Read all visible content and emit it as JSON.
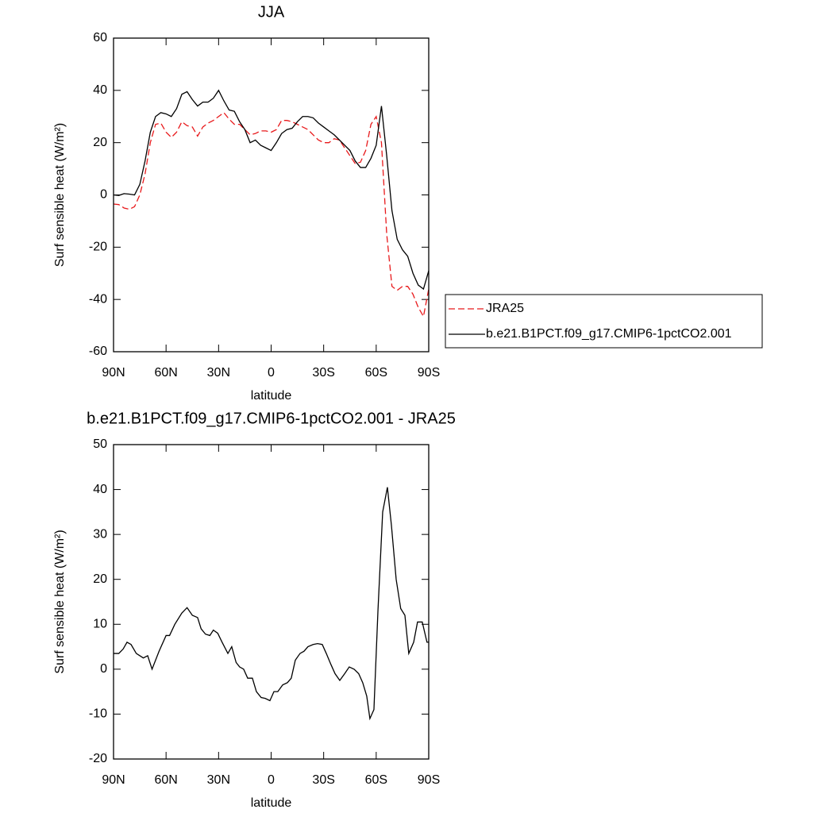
{
  "chart_data": [
    {
      "type": "line",
      "title": "JJA",
      "xlabel": "latitude",
      "ylabel": "Surf sensible heat (W/m²)",
      "x": [
        90,
        87,
        84,
        81,
        78,
        75,
        72,
        69,
        66,
        63,
        60,
        57,
        54,
        51,
        48,
        45,
        42,
        39,
        36,
        33,
        30,
        27,
        24,
        21,
        18,
        15,
        12,
        9,
        6,
        3,
        0,
        -3,
        -6,
        -9,
        -12,
        -15,
        -18,
        -21,
        -24,
        -27,
        -30,
        -33,
        -36,
        -39,
        -42,
        -45,
        -48,
        -51,
        -54,
        -57,
        -60,
        -63,
        -66,
        -69,
        -72,
        -75,
        -78,
        -81,
        -84,
        -87,
        -90
      ],
      "series": [
        {
          "name": "JRA25",
          "color": "#e8191b",
          "line_style": "dashed",
          "values": [
            -3.5,
            -3.7,
            -5,
            -5.5,
            -4.5,
            0,
            8,
            20,
            27,
            27.5,
            24,
            22,
            24,
            28,
            26.5,
            26,
            22.5,
            26,
            27.5,
            28.5,
            30,
            31.5,
            29,
            27,
            27,
            25,
            23,
            23.5,
            24.5,
            24.5,
            24,
            25,
            28.5,
            28.5,
            28,
            27,
            26,
            25,
            23,
            21,
            20,
            20,
            21.5,
            21,
            18,
            15,
            12,
            12.5,
            17,
            27,
            30,
            20,
            -15,
            -35,
            -36.5,
            -35,
            -35,
            -38,
            -43,
            -46.5,
            -36
          ]
        },
        {
          "name": "b.e21.B1PCT.f09_g17.CMIP6-1pctCO2.001",
          "color": "#000000",
          "line_style": "solid",
          "values": [
            0,
            -0.2,
            0.5,
            0.3,
            0,
            4,
            13,
            24,
            30,
            31.5,
            31,
            30,
            33,
            38.5,
            39.5,
            36.5,
            34,
            35.5,
            35.5,
            37,
            40,
            36,
            32.5,
            32,
            28,
            25,
            20,
            21,
            19,
            18,
            17,
            20,
            23.5,
            25,
            25.5,
            28,
            30,
            30,
            29.5,
            27.5,
            26,
            24.5,
            23,
            21,
            19,
            17,
            13,
            10.5,
            10.5,
            14,
            19,
            34,
            15,
            -6,
            -17,
            -21,
            -23.5,
            -30,
            -34.5,
            -36,
            -29
          ]
        }
      ],
      "xlim": [
        90,
        -90
      ],
      "xticks": [
        {
          "value": 90,
          "label": "90N"
        },
        {
          "value": 60,
          "label": "60N"
        },
        {
          "value": 30,
          "label": "30N"
        },
        0,
        {
          "value": -30,
          "label": "30S"
        },
        {
          "value": -60,
          "label": "60S"
        },
        {
          "value": -90,
          "label": "90S"
        }
      ],
      "ylim": [
        -60,
        60
      ],
      "yticks": [
        -60,
        -40,
        -20,
        0,
        20,
        40,
        60
      ],
      "legend": "right"
    },
    {
      "type": "line",
      "title": "b.e21.B1PCT.f09_g17.CMIP6-1pctCO2.001 - JRA25",
      "xlabel": "latitude",
      "ylabel": "Surf sensible heat (W/m²)",
      "x": [
        90,
        87,
        84.5,
        82.3,
        80,
        77,
        73,
        70.5,
        68,
        64,
        60,
        58,
        55,
        51,
        48,
        45,
        42,
        40,
        37.5,
        35,
        33,
        30.5,
        28,
        24.7,
        22.5,
        20,
        18,
        15.7,
        13.4,
        10.7,
        8.4,
        5.7,
        3.4,
        0.7,
        -1.6,
        -3.8,
        -6.6,
        -9.3,
        -11.5,
        -13.8,
        -16.5,
        -18.8,
        -21,
        -24,
        -26.5,
        -29.2,
        -31.5,
        -34.2,
        -36.5,
        -39.2,
        -42,
        -44.6,
        -47.4,
        -50,
        -52.3,
        -54.6,
        -56.4,
        -58.7,
        -61,
        -63.7,
        -66.4,
        -68.7,
        -71.4,
        -74,
        -76.4,
        -78.6,
        -81.4,
        -83.6,
        -86.3,
        -89,
        -90
      ],
      "values": [
        3.5,
        3.5,
        4.5,
        6,
        5.5,
        3.5,
        2.5,
        3,
        0,
        4,
        7.5,
        7.5,
        10,
        12.5,
        13.7,
        12,
        11.5,
        9,
        7.8,
        7.5,
        8.7,
        8,
        6,
        3.5,
        5,
        1.5,
        0.5,
        0,
        -2,
        -2,
        -5,
        -6.3,
        -6.5,
        -7,
        -5,
        -5,
        -3.5,
        -3,
        -2,
        2,
        3.5,
        4,
        5,
        5.5,
        5.7,
        5.5,
        3.5,
        1,
        -1,
        -2.5,
        -1,
        0.5,
        0,
        -1,
        -3,
        -6,
        -11,
        -9,
        13,
        35,
        40.5,
        32,
        20,
        13.5,
        12,
        3.5,
        6,
        10.5,
        10.5,
        6,
        6
      ],
      "color": "#000000",
      "xlim": [
        90,
        -90
      ],
      "xticks": [
        {
          "value": 90,
          "label": "90N"
        },
        {
          "value": 60,
          "label": "60N"
        },
        {
          "value": 30,
          "label": "30N"
        },
        0,
        {
          "value": -30,
          "label": "30S"
        },
        {
          "value": -60,
          "label": "60S"
        },
        {
          "value": -90,
          "label": "90S"
        }
      ],
      "ylim": [
        -20,
        50
      ],
      "yticks": [
        -20,
        -10,
        0,
        10,
        20,
        30,
        40,
        50
      ]
    }
  ]
}
